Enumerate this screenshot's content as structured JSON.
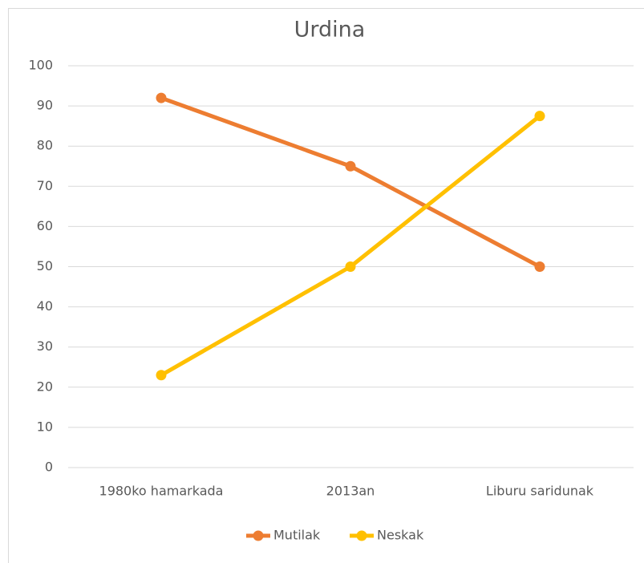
{
  "chart_data": {
    "type": "line",
    "title": "Urdina",
    "categories": [
      "1980ko hamarkada",
      "2013an",
      "Liburu saridunak"
    ],
    "series": [
      {
        "name": "Mutilak",
        "color": "#ED7D31",
        "values": [
          92,
          75,
          50
        ]
      },
      {
        "name": "Neskak",
        "color": "#FFC000",
        "values": [
          23,
          50,
          87.5
        ]
      }
    ],
    "ylim": [
      0,
      100
    ],
    "yticks": [
      0,
      10,
      20,
      30,
      40,
      50,
      60,
      70,
      80,
      90,
      100
    ],
    "grid": true,
    "legend": "bottom"
  }
}
